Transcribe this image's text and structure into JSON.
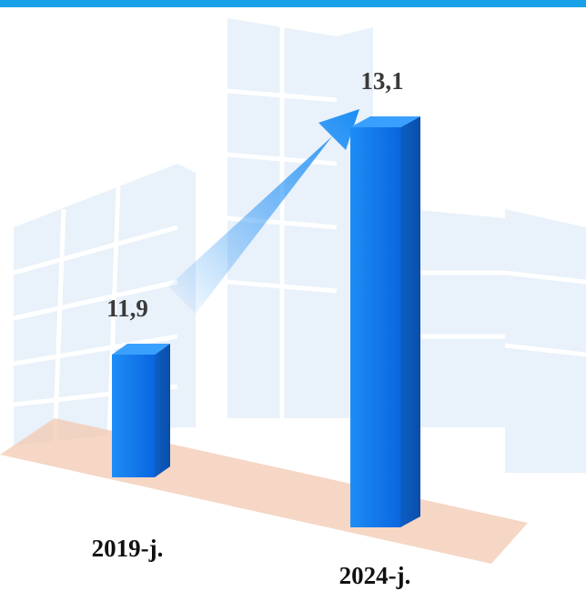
{
  "chart_data": {
    "type": "bar3d",
    "categories": [
      "2019-j.",
      "2024-j."
    ],
    "values": [
      11.9,
      13.1
    ],
    "value_labels": [
      "11,9",
      "13,1"
    ],
    "color": "#1a7ff0"
  }
}
